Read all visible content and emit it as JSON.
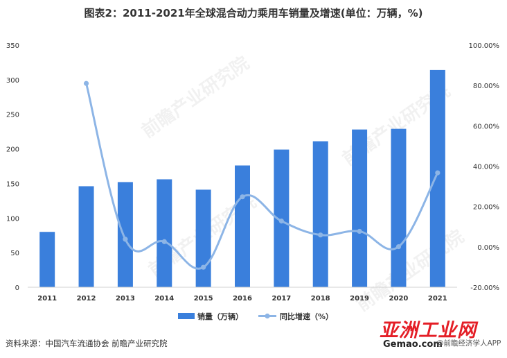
{
  "chart_data": {
    "type": "bar+line",
    "title": "图表2：2011-2021年全球混合动力乘用车销量及增速(单位：万辆，%)",
    "categories": [
      "2011",
      "2012",
      "2013",
      "2014",
      "2015",
      "2016",
      "2017",
      "2018",
      "2019",
      "2020",
      "2021"
    ],
    "series": [
      {
        "name": "销量（万辆）",
        "type": "bar",
        "axis": "left",
        "color": "#3a7fdc",
        "values": [
          80,
          146,
          152,
          156,
          141,
          176,
          199,
          211,
          228,
          229,
          314
        ]
      },
      {
        "name": "同比增速（%）",
        "type": "line",
        "axis": "right",
        "color": "#8db5e6",
        "values": [
          null,
          81.0,
          3.8,
          2.6,
          -10.1,
          24.8,
          12.8,
          5.9,
          7.7,
          0.1,
          36.7
        ]
      }
    ],
    "y_left": {
      "min": 0,
      "max": 350,
      "step": 50,
      "ticks": [
        "0",
        "50",
        "100",
        "150",
        "200",
        "250",
        "300",
        "350"
      ]
    },
    "y_right": {
      "min": -20,
      "max": 100,
      "step": 20,
      "ticks": [
        "-20.00%",
        "0.00%",
        "20.00%",
        "40.00%",
        "60.00%",
        "80.00%",
        "100.00%"
      ]
    },
    "legend": {
      "position": "bottom",
      "items": [
        "销量（万辆）",
        "同比增速（%）"
      ]
    },
    "grid": false
  },
  "source": "资料来源：中国汽车流通协会 前瞻产业研究院",
  "watermarks": {
    "diagonal": "前瞻产业研究院",
    "site_cn": "亚洲工业网",
    "site_url": "Gemao.com",
    "tail": "@前瞻经济学人APP"
  }
}
